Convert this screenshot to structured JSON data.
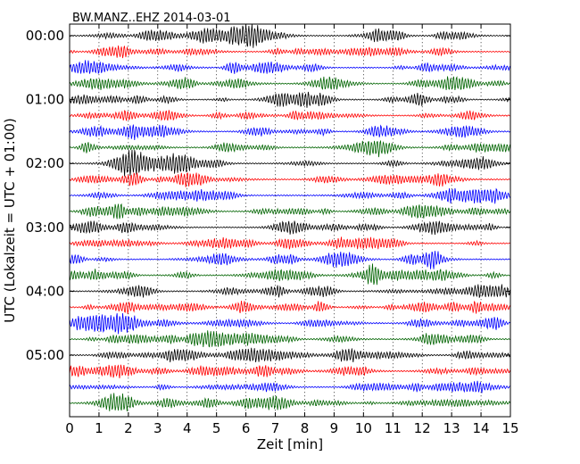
{
  "chart_data": {
    "type": "line",
    "title": "BW.MANZ..EHZ 2014-03-01",
    "xlabel": "Zeit  [min]",
    "ylabel": "UTC (Lokalzeit = UTC + 01:00)",
    "xlim": [
      0,
      15
    ],
    "x_ticks": [
      "0",
      "1",
      "2",
      "3",
      "4",
      "5",
      "6",
      "7",
      "8",
      "9",
      "10",
      "11",
      "12",
      "13",
      "14",
      "15"
    ],
    "y_ticks": [
      {
        "label": "00:00",
        "row": 0
      },
      {
        "label": "01:00",
        "row": 4
      },
      {
        "label": "02:00",
        "row": 8
      },
      {
        "label": "03:00",
        "row": 12
      },
      {
        "label": "04:00",
        "row": 16
      },
      {
        "label": "05:00",
        "row": 20
      }
    ],
    "row_count": 24,
    "trace_colors": [
      "#000000",
      "#ff0000",
      "#0000ff",
      "#006400"
    ],
    "grid": "vertical-dotted"
  }
}
